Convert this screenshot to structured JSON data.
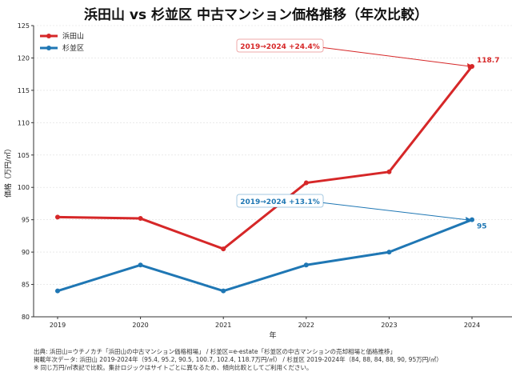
{
  "chart_data": {
    "type": "line",
    "title": "浜田山 vs 杉並区 中古マンション価格推移（年次比較）",
    "xlabel": "年",
    "ylabel": "価格（万円/㎡）",
    "categories": [
      "2019",
      "2020",
      "2021",
      "2022",
      "2023",
      "2024"
    ],
    "ylim": [
      80,
      125
    ],
    "yticks": [
      80,
      85,
      90,
      95,
      100,
      105,
      110,
      115,
      120,
      125
    ],
    "grid": true,
    "legend_position": "top-left",
    "series": [
      {
        "name": "浜田山",
        "color": "#d62728",
        "values": [
          95.4,
          95.2,
          90.5,
          100.7,
          102.4,
          118.7
        ],
        "end_label": "118.7",
        "annotation": "2019→2024 +24.4%"
      },
      {
        "name": "杉並区",
        "color": "#1f77b4",
        "values": [
          84,
          88,
          84,
          88,
          90,
          95
        ],
        "end_label": "95",
        "annotation": "2019→2024 +13.1%"
      }
    ]
  },
  "footer": [
    "出典: 浜田山=ウチノカチ「浜田山の中古マンション価格相場」 / 杉並区=e-estate「杉並区の中古マンションの売却相場と価格推移」",
    "掲載年次データ: 浜田山 2019-2024年（95.4, 95.2, 90.5, 100.7, 102.4, 118.7万円/㎡） / 杉並区 2019-2024年（84, 88, 84, 88, 90, 95万円/㎡）",
    "※ 同じ万円/㎡表記で比較。集計ロジックはサイトごとに異なるため、傾向比較としてご利用ください。"
  ]
}
